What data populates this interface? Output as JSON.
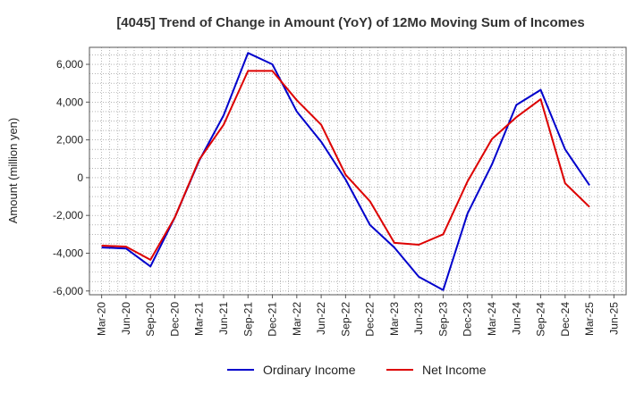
{
  "chart_data": {
    "type": "line",
    "title": "[4045]  Trend of Change in Amount (YoY) of 12Mo Moving Sum of Incomes",
    "xlabel": "",
    "ylabel": "Amount (million yen)",
    "categories": [
      "Mar-20",
      "Jun-20",
      "Sep-20",
      "Dec-20",
      "Mar-21",
      "Jun-21",
      "Sep-21",
      "Dec-21",
      "Mar-22",
      "Jun-22",
      "Sep-22",
      "Dec-22",
      "Mar-23",
      "Jun-23",
      "Sep-23",
      "Dec-23",
      "Mar-24",
      "Jun-24",
      "Sep-24",
      "Dec-24",
      "Mar-25",
      "Jun-25"
    ],
    "ylim": [
      -6200,
      6900
    ],
    "yticks": [
      -6000,
      -4000,
      -2000,
      0,
      2000,
      4000,
      6000
    ],
    "ytick_labels": [
      "-6,000",
      "-4,000",
      "-2,000",
      "0",
      "2,000",
      "4,000",
      "6,000"
    ],
    "grid": true,
    "legend_position": "bottom",
    "series": [
      {
        "name": "Ordinary Income",
        "color": "#0000cc",
        "values": [
          -3700,
          -3750,
          -4700,
          -2100,
          900,
          3300,
          6600,
          6000,
          3500,
          1900,
          -100,
          -2500,
          -3700,
          -5250,
          -5950,
          -1900,
          700,
          3850,
          4650,
          1500,
          -400,
          null
        ]
      },
      {
        "name": "Net Income",
        "color": "#dd0000",
        "values": [
          -3600,
          -3650,
          -4350,
          -2100,
          950,
          2800,
          5650,
          5650,
          4100,
          2800,
          150,
          -1250,
          -3450,
          -3550,
          -3000,
          -200,
          2050,
          3200,
          4150,
          -300,
          -1550,
          null
        ]
      }
    ]
  }
}
